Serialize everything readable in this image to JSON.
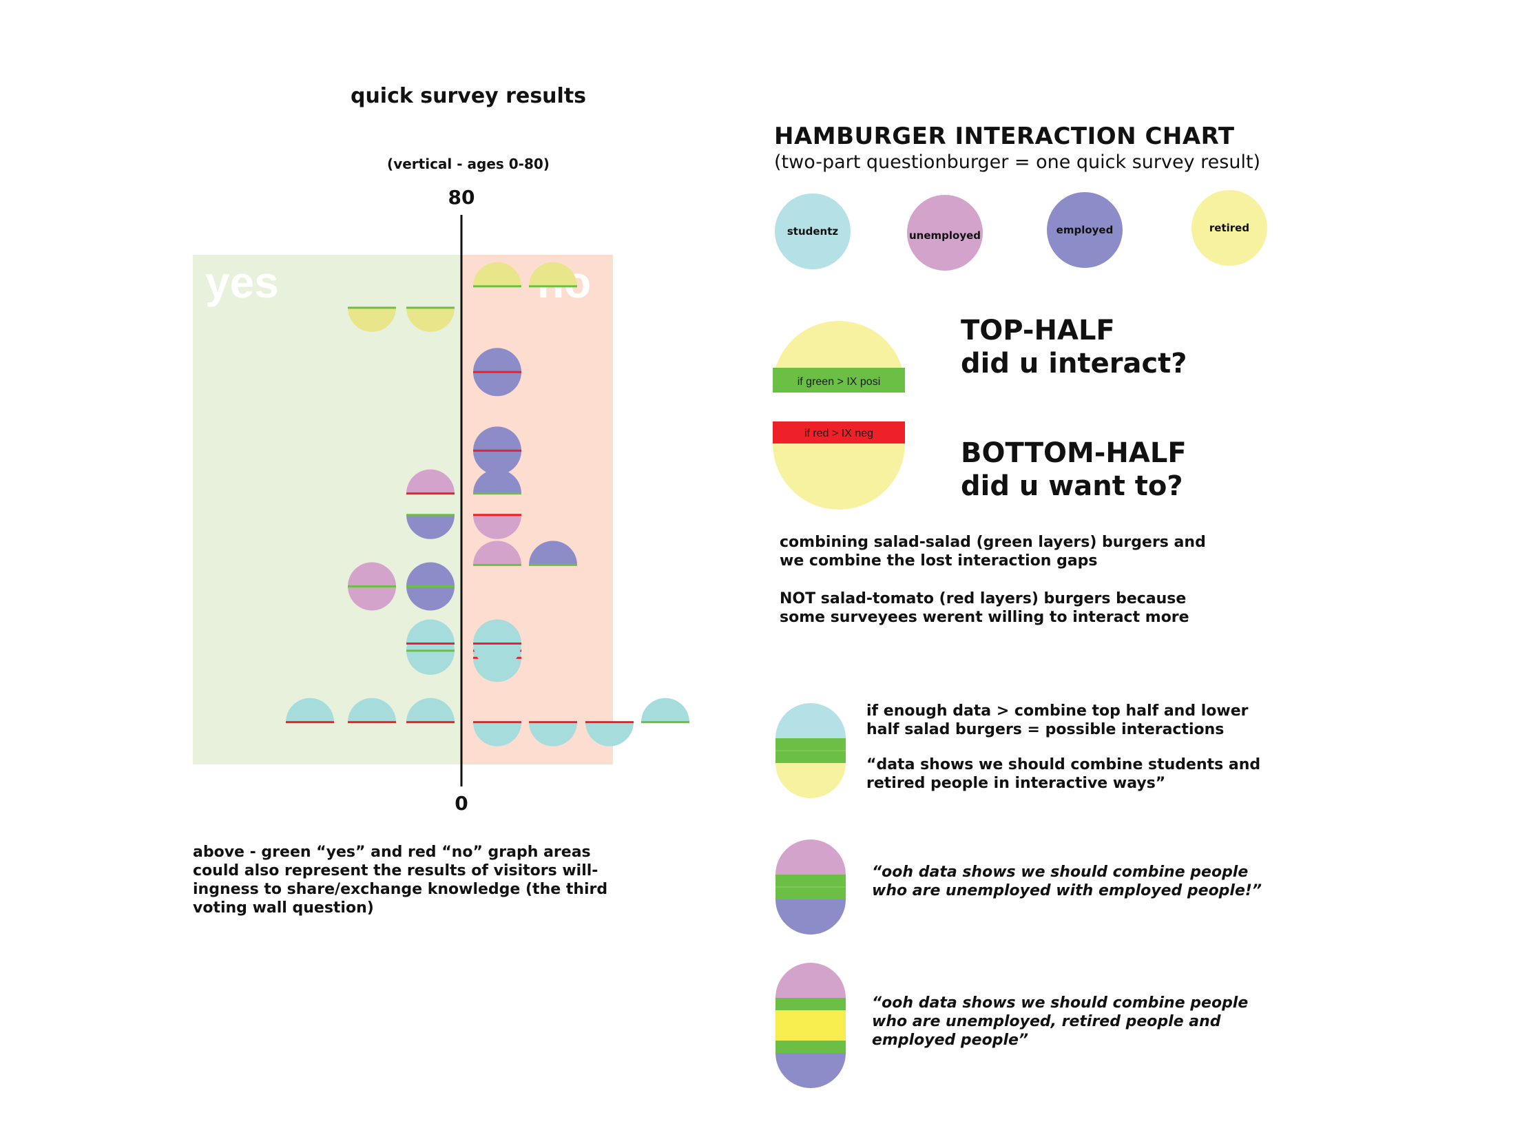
{
  "survey": {
    "title": "quick survey results",
    "subtitle": "(vertical - ages 0-80)",
    "axis_top": "80",
    "axis_bottom": "0",
    "yes_label": "yes",
    "no_label": "no",
    "caption": "above - green “yes” and red “no” graph areas could also represent the results of visitors will-ingness to share/exchange knowledge (the third voting wall question)"
  },
  "colors": {
    "student": "#b3e1e6",
    "student_burger": "#a6dcdc",
    "unemployed": "#d4a3cc",
    "employed": "#8c8dc8",
    "retired": "#f7f2a0",
    "retired_dark": "#e8e58a",
    "yellow_bright": "#f7ed4f",
    "green_layer": "#6bbf45",
    "red_layer": "#ee2028",
    "yes_area": "#e7f1dc",
    "no_area": "#fdddd0"
  },
  "chart_data": {
    "type": "scatter",
    "title": "quick survey results",
    "ylabel": "(vertical - ages 0-80)",
    "ylim": [
      0,
      80
    ],
    "categories": [
      "yes",
      "no"
    ],
    "series_key": [
      "studentz",
      "unemployed",
      "employed",
      "retired"
    ],
    "points": [
      {
        "side": "yes",
        "group": "retired",
        "age": 67,
        "top": null,
        "bottom": "green"
      },
      {
        "side": "yes",
        "group": "retired",
        "age": 67,
        "top": null,
        "bottom": "green"
      },
      {
        "side": "no",
        "group": "retired",
        "age": 70,
        "top": "green",
        "bottom": null
      },
      {
        "side": "no",
        "group": "retired",
        "age": 70,
        "top": "green",
        "bottom": null
      },
      {
        "side": "no",
        "group": "employed",
        "age": 58,
        "top": "red",
        "bottom": "red"
      },
      {
        "side": "no",
        "group": "employed",
        "age": 47,
        "top": "red",
        "bottom": "red"
      },
      {
        "side": "yes",
        "group": "employed",
        "age": 38,
        "top": null,
        "bottom": "green"
      },
      {
        "side": "yes",
        "group": "unemployed",
        "age": 41,
        "top": "red",
        "bottom": null
      },
      {
        "side": "no",
        "group": "unemployed",
        "age": 38,
        "top": null,
        "bottom": "red"
      },
      {
        "side": "no",
        "group": "employed",
        "age": 41,
        "top": "green",
        "bottom": null
      },
      {
        "side": "yes",
        "group": "employed",
        "age": 28,
        "top": "green",
        "bottom": "green"
      },
      {
        "side": "yes",
        "group": "unemployed",
        "age": 28,
        "top": "green",
        "bottom": "green"
      },
      {
        "side": "no",
        "group": "unemployed",
        "age": 31,
        "top": "green",
        "bottom": null
      },
      {
        "side": "no",
        "group": "employed",
        "age": 31,
        "top": "green",
        "bottom": null
      },
      {
        "side": "yes",
        "group": "studentz",
        "age": 19,
        "top": "green",
        "bottom": "green"
      },
      {
        "side": "yes",
        "group": "studentz",
        "age": 20,
        "top": "red",
        "bottom": null
      },
      {
        "side": "no",
        "group": "studentz",
        "age": 19,
        "top": "red",
        "bottom": "red"
      },
      {
        "side": "no",
        "group": "studentz",
        "age": 18,
        "top": null,
        "bottom": "red"
      },
      {
        "side": "no",
        "group": "studentz",
        "age": 20,
        "top": "red",
        "bottom": "red"
      },
      {
        "side": "yes",
        "group": "studentz",
        "age": 9,
        "top": "red",
        "bottom": null
      },
      {
        "side": "yes",
        "group": "studentz",
        "age": 9,
        "top": "red",
        "bottom": null
      },
      {
        "side": "yes",
        "group": "studentz",
        "age": 9,
        "top": "red",
        "bottom": null
      },
      {
        "side": "no",
        "group": "studentz",
        "age": 9,
        "top": null,
        "bottom": "red"
      },
      {
        "side": "no",
        "group": "studentz",
        "age": 9,
        "top": null,
        "bottom": "red"
      },
      {
        "side": "no",
        "group": "studentz",
        "age": 9,
        "top": null,
        "bottom": "red"
      },
      {
        "side": "no",
        "group": "studentz",
        "age": 9,
        "top": "green",
        "bottom": null
      }
    ]
  },
  "key": {
    "title": "HAMBURGER INTERACTION CHART",
    "subtitle": "(two-part questionburger = one quick survey result)",
    "legend": [
      {
        "label": "studentz",
        "color": "#b3e1e6"
      },
      {
        "label": "unemployed",
        "color": "#d4a3cc"
      },
      {
        "label": "employed",
        "color": "#8c8dc8"
      },
      {
        "label": "retired",
        "color": "#f7f2a0"
      }
    ],
    "top_half_bar": "if green > IX posi",
    "bottom_half_bar": "if red > IX neg",
    "top_half_title": "TOP-HALF",
    "top_half_question": "did u interact?",
    "bottom_half_title": "BOTTOM-HALF",
    "bottom_half_question": "did u want to?",
    "combining_1": "combining salad-salad (green layers) burgers and we combine the lost interaction gaps",
    "combining_2": "NOT salad-tomato (red layers) burgers because some surveyees werent willing to interact more",
    "example_1_a": "if enough data > combine top half and lower half salad burgers = possible interactions",
    "example_1_b": "“data shows we should combine students and retired people in interactive ways”",
    "example_2": "“ooh data shows we should combine people who are unemployed with employed people!”",
    "example_3": "“ooh data shows we should combine people who are unemployed, retired people and employed people”"
  }
}
